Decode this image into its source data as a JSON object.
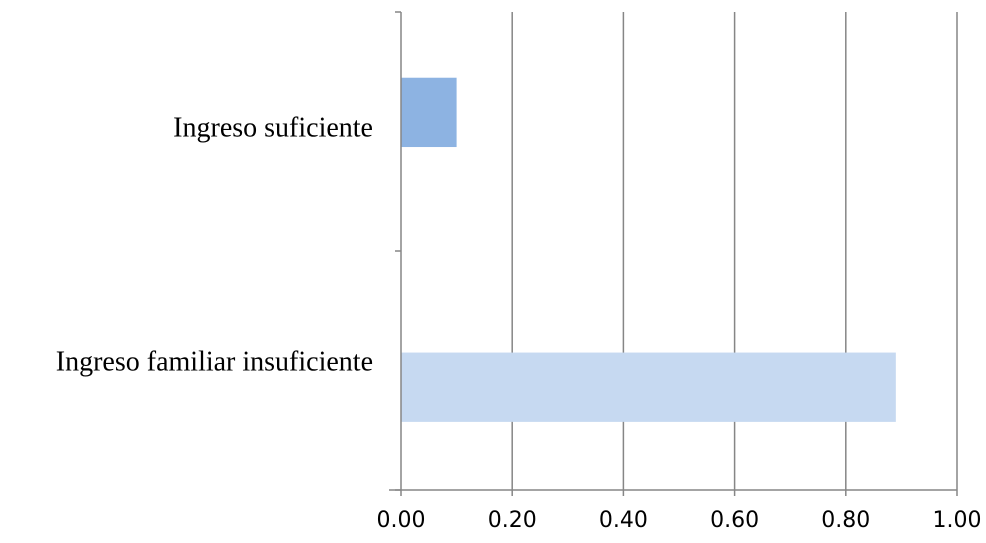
{
  "chart_data": {
    "type": "bar",
    "orientation": "horizontal",
    "categories": [
      "Ingreso suficiente",
      "Ingreso familiar insuficiente"
    ],
    "values": [
      0.1,
      0.89
    ],
    "bar_colors": [
      "#8DB3E2",
      "#C6D9F1"
    ],
    "xlim": [
      0,
      1
    ],
    "x_ticks": [
      "0.00",
      "0.20",
      "0.40",
      "0.60",
      "0.80",
      "1.00"
    ],
    "grid": "vertical",
    "legend": "none"
  }
}
